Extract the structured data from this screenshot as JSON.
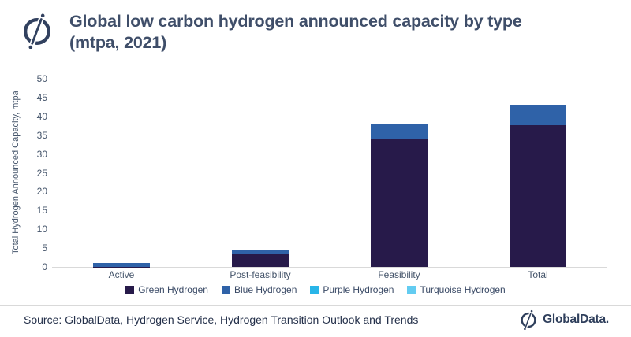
{
  "header": {
    "title_line1": "Global low carbon hydrogen announced capacity by type",
    "title_line2": "(mtpa, 2021)"
  },
  "chart_data": {
    "type": "bar",
    "stacked": true,
    "title": "Global low carbon hydrogen announced capacity by type (mtpa, 2021)",
    "categories": [
      "Active",
      "Post-feasibility",
      "Feasibility",
      "Total"
    ],
    "series": [
      {
        "name": "Green Hydrogen",
        "color": "#271A4A",
        "values": [
          0.1,
          3.5,
          34.0,
          37.6
        ]
      },
      {
        "name": "Blue Hydrogen",
        "color": "#2F62A8",
        "values": [
          0.9,
          0.8,
          3.9,
          5.5
        ]
      },
      {
        "name": "Purple Hydrogen",
        "color": "#29B5E8",
        "values": [
          0,
          0,
          0,
          0
        ]
      },
      {
        "name": "Turquoise Hydrogen",
        "color": "#63CCF1",
        "values": [
          0,
          0,
          0,
          0
        ]
      }
    ],
    "ylabel": "Total Hydrogen Announced Capacity, mtpa",
    "xlabel": "",
    "ylim": [
      0,
      50
    ],
    "ytick_step": 5,
    "grid": false,
    "legend_position": "bottom"
  },
  "footer": {
    "source": "Source: GlobalData, Hydrogen Service, Hydrogen Transition Outlook and Trends",
    "brand": "GlobalData."
  },
  "colors": {
    "title_navy": "#3F4E69",
    "axis_text": "#44546A",
    "axis_line": "#D9D9D9",
    "logo_navy": "#32415F"
  }
}
